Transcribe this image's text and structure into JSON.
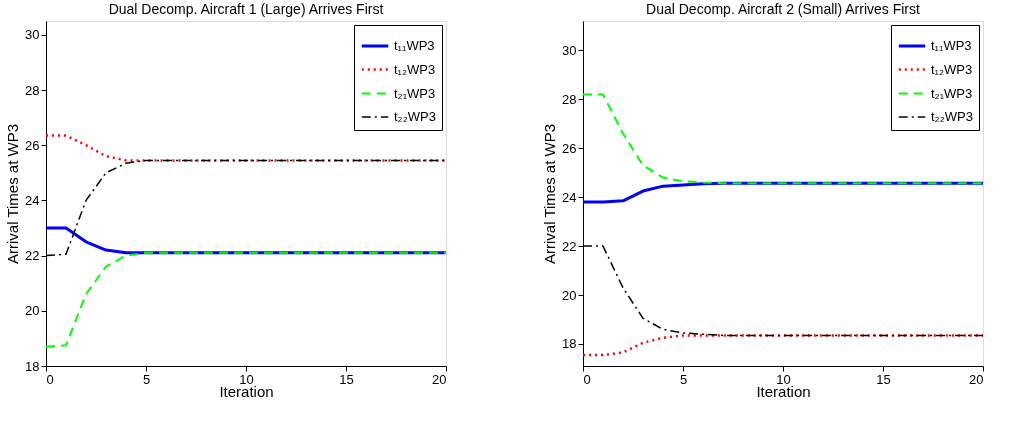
{
  "chart_data": [
    {
      "type": "line",
      "title": "Dual Decomp. Aircraft 1 (Large) Arrives First",
      "xlabel": "Iteration",
      "ylabel": "Arrival Times at WP3",
      "x": [
        0,
        1,
        2,
        3,
        4,
        5,
        6,
        7,
        8,
        9,
        10,
        11,
        12,
        13,
        14,
        15,
        16,
        17,
        18,
        19,
        20
      ],
      "xlim": [
        0,
        20
      ],
      "xticks": [
        0,
        5,
        10,
        15,
        20
      ],
      "ylim": [
        18,
        30.5
      ],
      "yticks": [
        18,
        20,
        22,
        24,
        26,
        28,
        30
      ],
      "grid": false,
      "legend": "top right",
      "series": [
        {
          "name": "t₁₁WP3",
          "color": "#0000ff",
          "line_style": "solid",
          "values": [
            23,
            23,
            22.5,
            22.2,
            22.1,
            22.1,
            22.1,
            22.1,
            22.1,
            22.1,
            22.1,
            22.1,
            22.1,
            22.1,
            22.1,
            22.1,
            22.1,
            22.1,
            22.1,
            22.1,
            22.1
          ]
        },
        {
          "name": "t₁₂WP3",
          "color": "#ff0000",
          "line_style": "dotted",
          "values": [
            26.35,
            26.35,
            26.0,
            25.6,
            25.45,
            25.45,
            25.45,
            25.45,
            25.45,
            25.45,
            25.45,
            25.45,
            25.45,
            25.45,
            25.45,
            25.45,
            25.45,
            25.45,
            25.45,
            25.45,
            25.45
          ]
        },
        {
          "name": "t₂₁WP3",
          "color": "#00ff00",
          "line_style": "dashed",
          "values": [
            18.7,
            18.75,
            20.6,
            21.6,
            22.0,
            22.1,
            22.1,
            22.1,
            22.1,
            22.1,
            22.1,
            22.1,
            22.1,
            22.1,
            22.1,
            22.1,
            22.1,
            22.1,
            22.1,
            22.1,
            22.1
          ]
        },
        {
          "name": "t₂₂WP3",
          "color": "#000000",
          "line_style": "dashdot",
          "values": [
            22.0,
            22.05,
            24.0,
            25.0,
            25.35,
            25.45,
            25.45,
            25.45,
            25.45,
            25.45,
            25.45,
            25.45,
            25.45,
            25.45,
            25.45,
            25.45,
            25.45,
            25.45,
            25.45,
            25.45,
            25.45
          ]
        }
      ]
    },
    {
      "type": "line",
      "title": "Dual Decomp. Aircraft 2 (Small) Arrives First",
      "xlabel": "Iteration",
      "ylabel": "Arrival Times at WP3",
      "x": [
        0,
        1,
        2,
        3,
        4,
        5,
        6,
        7,
        8,
        9,
        10,
        11,
        12,
        13,
        14,
        15,
        16,
        17,
        18,
        19,
        20
      ],
      "xlim": [
        0,
        20
      ],
      "xticks": [
        0,
        5,
        10,
        15,
        20
      ],
      "ylim": [
        17.1,
        31.2
      ],
      "yticks": [
        18,
        20,
        22,
        24,
        26,
        28,
        30
      ],
      "grid": false,
      "legend": "top right",
      "series": [
        {
          "name": "t₁₁WP3",
          "color": "#0000ff",
          "line_style": "solid",
          "values": [
            23.8,
            23.8,
            23.85,
            24.25,
            24.45,
            24.5,
            24.55,
            24.57,
            24.57,
            24.57,
            24.57,
            24.57,
            24.57,
            24.57,
            24.57,
            24.57,
            24.57,
            24.57,
            24.57,
            24.57,
            24.57
          ]
        },
        {
          "name": "t₁₂WP3",
          "color": "#ff0000",
          "line_style": "dotted",
          "values": [
            17.55,
            17.55,
            17.65,
            18.05,
            18.25,
            18.35,
            18.35,
            18.35,
            18.35,
            18.35,
            18.35,
            18.35,
            18.35,
            18.35,
            18.35,
            18.35,
            18.35,
            18.35,
            18.35,
            18.35,
            18.35
          ]
        },
        {
          "name": "t₂₁WP3",
          "color": "#00ff00",
          "line_style": "dashed",
          "values": [
            28.2,
            28.2,
            26.6,
            25.3,
            24.8,
            24.65,
            24.6,
            24.57,
            24.57,
            24.57,
            24.57,
            24.57,
            24.57,
            24.57,
            24.57,
            24.57,
            24.57,
            24.57,
            24.57,
            24.57,
            24.57
          ]
        },
        {
          "name": "t₂₂WP3",
          "color": "#000000",
          "line_style": "dashdot",
          "values": [
            22.0,
            22.0,
            20.3,
            19.05,
            18.6,
            18.45,
            18.4,
            18.35,
            18.35,
            18.35,
            18.35,
            18.35,
            18.35,
            18.35,
            18.35,
            18.35,
            18.35,
            18.35,
            18.35,
            18.35,
            18.35
          ]
        }
      ]
    }
  ]
}
